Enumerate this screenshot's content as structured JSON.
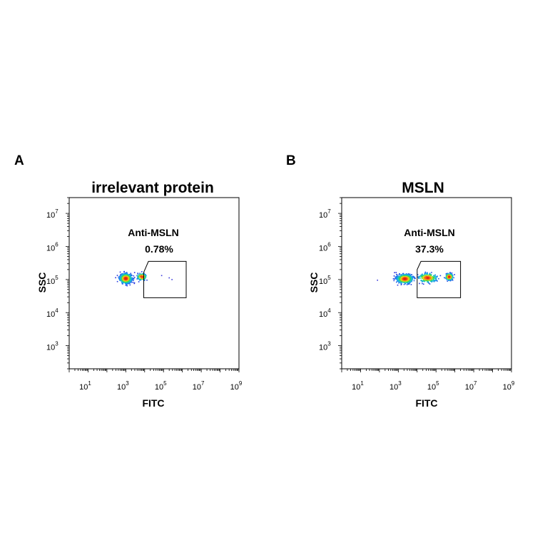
{
  "chart_data": [
    {
      "type": "scatter",
      "panel_label": "A",
      "title": "irrelevant protein",
      "xlabel": "FITC",
      "ylabel": "SSC",
      "x_scale": "log",
      "y_scale": "log",
      "xlim": [
        1,
        1000000000
      ],
      "ylim": [
        200,
        30000000
      ],
      "x_ticks": [
        {
          "base": "10",
          "exp": "1",
          "value": 10
        },
        {
          "base": "10",
          "exp": "3",
          "value": 1000
        },
        {
          "base": "10",
          "exp": "5",
          "value": 100000
        },
        {
          "base": "10",
          "exp": "7",
          "value": 10000000
        },
        {
          "base": "10",
          "exp": "9",
          "value": 1000000000
        }
      ],
      "y_ticks": [
        {
          "base": "10",
          "exp": "3",
          "value": 1000
        },
        {
          "base": "10",
          "exp": "4",
          "value": 10000
        },
        {
          "base": "10",
          "exp": "5",
          "value": 100000
        },
        {
          "base": "10",
          "exp": "6",
          "value": 1000000
        },
        {
          "base": "10",
          "exp": "7",
          "value": 10000000
        }
      ],
      "populations": [
        {
          "log_x_center": 3.0,
          "log_y_center": 5.03,
          "log_x_spread": 0.28,
          "log_y_spread": 0.13,
          "count": 700
        },
        {
          "log_x_center": 3.85,
          "log_y_center": 5.08,
          "log_x_spread": 0.22,
          "log_y_spread": 0.09,
          "count": 160
        }
      ],
      "sparse_points_log": [
        [
          5.3,
          5.05
        ],
        [
          5.45,
          5.0
        ],
        [
          4.9,
          5.12
        ]
      ],
      "gate": {
        "name": "Anti-MSLN",
        "percent": "0.78%",
        "polygon_log": [
          [
            3.95,
            5.22
          ],
          [
            4.2,
            5.55
          ],
          [
            6.2,
            5.55
          ],
          [
            6.2,
            4.45
          ],
          [
            3.95,
            4.45
          ]
        ]
      }
    },
    {
      "type": "scatter",
      "panel_label": "B",
      "title": "MSLN",
      "xlabel": "FITC",
      "ylabel": "SSC",
      "x_scale": "log",
      "y_scale": "log",
      "xlim": [
        1,
        1000000000
      ],
      "ylim": [
        200,
        30000000
      ],
      "x_ticks": [
        {
          "base": "10",
          "exp": "1",
          "value": 10
        },
        {
          "base": "10",
          "exp": "3",
          "value": 1000
        },
        {
          "base": "10",
          "exp": "5",
          "value": 100000
        },
        {
          "base": "10",
          "exp": "7",
          "value": 10000000
        },
        {
          "base": "10",
          "exp": "9",
          "value": 1000000000
        }
      ],
      "y_ticks": [
        {
          "base": "10",
          "exp": "3",
          "value": 1000
        },
        {
          "base": "10",
          "exp": "4",
          "value": 10000
        },
        {
          "base": "10",
          "exp": "5",
          "value": 100000
        },
        {
          "base": "10",
          "exp": "6",
          "value": 1000000
        },
        {
          "base": "10",
          "exp": "7",
          "value": 10000000
        }
      ],
      "populations": [
        {
          "log_x_center": 3.35,
          "log_y_center": 5.02,
          "log_x_spread": 0.38,
          "log_y_spread": 0.12,
          "count": 650
        },
        {
          "log_x_center": 4.55,
          "log_y_center": 5.05,
          "log_x_spread": 0.45,
          "log_y_spread": 0.12,
          "count": 300
        },
        {
          "log_x_center": 5.7,
          "log_y_center": 5.08,
          "log_x_spread": 0.18,
          "log_y_spread": 0.09,
          "count": 240
        }
      ],
      "sparse_points_log": [
        [
          1.9,
          4.98
        ]
      ],
      "gate": {
        "name": "Anti-MSLN",
        "percent": "37.3%",
        "polygon_log": [
          [
            4.0,
            4.45
          ],
          [
            4.0,
            5.3
          ],
          [
            4.2,
            5.55
          ],
          [
            6.3,
            5.55
          ],
          [
            6.3,
            4.45
          ]
        ]
      }
    }
  ]
}
